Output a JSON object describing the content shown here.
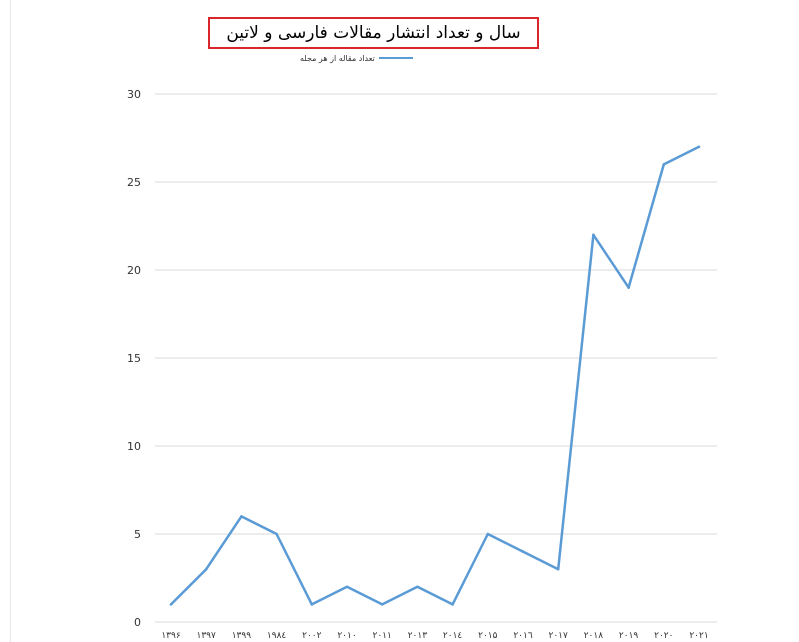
{
  "chart_data": {
    "type": "line",
    "title": "سال و تعداد انتشار مقالات فارسی و لاتین",
    "legend_position": "top",
    "grid": true,
    "ylim": [
      0,
      30
    ],
    "y_ticks": [
      0,
      5,
      10,
      15,
      20,
      25,
      30
    ],
    "categories": [
      "۱۳۹۶",
      "۱۳۹۷",
      "۱۳۹۹",
      "۱۹۸٤",
      "۲۰۰۲",
      "۲۰۱۰",
      "۲۰۱۱",
      "۲۰۱۳",
      "۲۰۱٤",
      "۲۰۱۵",
      "۲۰۱٦",
      "۲۰۱۷",
      "۲۰۱۸",
      "۲۰۱۹",
      "۲۰۲۰",
      "۲۰۲۱"
    ],
    "series": [
      {
        "name": "تعداد مقاله از هر مجله",
        "color": "#5b9bd5",
        "values": [
          1,
          3,
          6,
          5,
          1,
          2,
          1,
          2,
          1,
          5,
          4,
          3,
          22,
          19,
          26,
          27
        ]
      }
    ]
  }
}
